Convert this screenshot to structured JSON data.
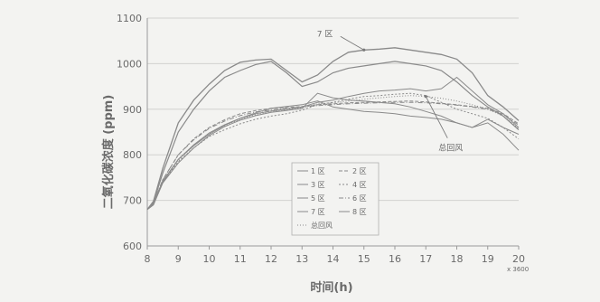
{
  "chart_data": {
    "type": "line",
    "title": "",
    "xlabel": "时间(h)",
    "ylabel": "二氧化碳浓度 (ppm)",
    "x_multiplier_label": "x 3600",
    "xlim": [
      8,
      20
    ],
    "ylim": [
      600,
      1100
    ],
    "x_ticks": [
      8,
      9,
      10,
      11,
      12,
      13,
      14,
      15,
      16,
      17,
      18,
      19,
      20
    ],
    "y_ticks": [
      600,
      700,
      800,
      900,
      1000,
      1100
    ],
    "grid": "horizontal",
    "legend_position": "center-right",
    "x": [
      8,
      8.2,
      8.5,
      9,
      9.5,
      10,
      10.5,
      11,
      11.5,
      12,
      12.5,
      13,
      13.5,
      14,
      14.5,
      15,
      15.5,
      16,
      16.5,
      17,
      17.5,
      18,
      18.5,
      19,
      19.5,
      20
    ],
    "series": [
      {
        "name": "1 区",
        "values": [
          680,
          690,
          740,
          790,
          820,
          845,
          865,
          880,
          892,
          902,
          906,
          910,
          918,
          905,
          900,
          895,
          893,
          890,
          885,
          882,
          878,
          870,
          860,
          878,
          860,
          845
        ]
      },
      {
        "name": "2 区",
        "values": [
          680,
          692,
          745,
          800,
          835,
          860,
          877,
          890,
          897,
          902,
          904,
          906,
          910,
          912,
          914,
          915,
          916,
          917,
          918,
          916,
          913,
          910,
          906,
          902,
          890,
          868
        ]
      },
      {
        "name": "3 区",
        "values": [
          680,
          695,
          760,
          850,
          900,
          940,
          970,
          985,
          998,
          1005,
          980,
          950,
          960,
          980,
          990,
          995,
          1000,
          1005,
          1000,
          995,
          985,
          960,
          930,
          905,
          885,
          855
        ]
      },
      {
        "name": "4 区",
        "values": [
          680,
          693,
          740,
          785,
          815,
          840,
          855,
          868,
          878,
          885,
          890,
          898,
          910,
          915,
          922,
          928,
          930,
          933,
          935,
          930,
          915,
          900,
          890,
          880,
          860,
          835
        ]
      },
      {
        "name": "5 区",
        "values": [
          680,
          690,
          738,
          782,
          815,
          842,
          862,
          876,
          886,
          893,
          897,
          902,
          935,
          925,
          920,
          918,
          915,
          912,
          905,
          895,
          885,
          870,
          860,
          870,
          845,
          810
        ]
      },
      {
        "name": "6 区",
        "values": [
          680,
          694,
          745,
          800,
          833,
          858,
          874,
          886,
          894,
          898,
          902,
          905,
          908,
          910,
          912,
          913,
          914,
          915,
          915,
          914,
          912,
          909,
          905,
          900,
          888,
          865
        ]
      },
      {
        "name": "7 区",
        "values": [
          680,
          698,
          770,
          870,
          920,
          955,
          985,
          1003,
          1008,
          1010,
          985,
          960,
          975,
          1005,
          1025,
          1030,
          1032,
          1035,
          1030,
          1025,
          1020,
          1010,
          980,
          930,
          905,
          875
        ]
      },
      {
        "name": "8 区",
        "values": [
          680,
          692,
          742,
          790,
          822,
          848,
          866,
          880,
          890,
          896,
          900,
          905,
          915,
          920,
          928,
          935,
          940,
          942,
          945,
          940,
          945,
          970,
          940,
          910,
          890,
          860
        ]
      },
      {
        "name": "总回风",
        "values": [
          680,
          691,
          741,
          788,
          820,
          846,
          864,
          878,
          888,
          895,
          899,
          903,
          912,
          914,
          918,
          922,
          925,
          928,
          930,
          928,
          924,
          918,
          910,
          900,
          885,
          858
        ]
      }
    ],
    "annotations": [
      {
        "text": "7 区",
        "target_series": "7 区",
        "at_x": 15
      },
      {
        "text": "总回风",
        "target_series": "总回风",
        "at_x": 17
      }
    ],
    "colors": {
      "background": "#f3f3f1",
      "line": "#8a8a8a",
      "grid": "#d2d2d0",
      "text": "#6a6a6a"
    }
  }
}
